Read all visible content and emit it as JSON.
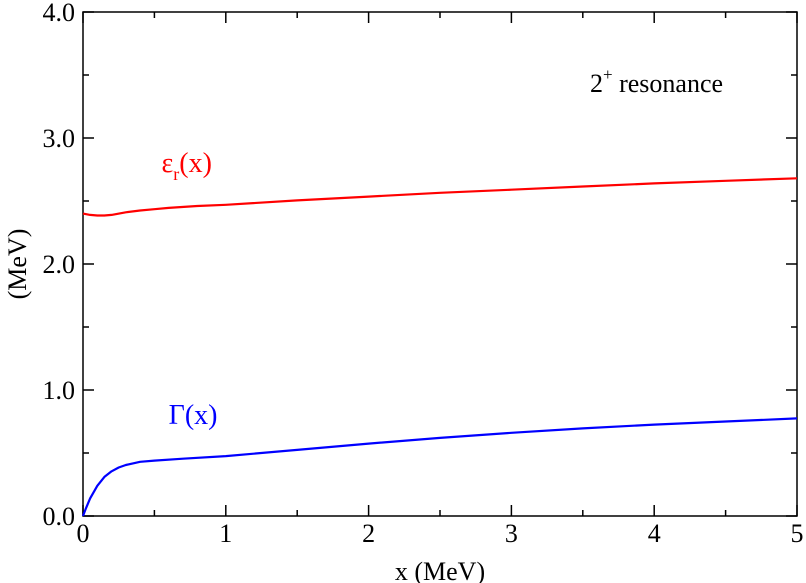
{
  "chart_data": {
    "type": "line",
    "xlabel": "x (MeV)",
    "ylabel": "(MeV)",
    "xlim": [
      0,
      5
    ],
    "ylim": [
      0,
      4
    ],
    "x_ticks": [
      "0",
      "1",
      "2",
      "3",
      "4",
      "5"
    ],
    "y_ticks": [
      "0.0",
      "1.0",
      "2.0",
      "3.0",
      "4.0"
    ],
    "grid": false,
    "annotation": {
      "base": "2",
      "sup": "+",
      "text": " resonance"
    },
    "series": [
      {
        "label_base": "ε",
        "label_sub": "r",
        "label_tail": "(x)",
        "label_x": 0.55,
        "label_y": 2.73,
        "color": "#ff0000",
        "x": [
          0,
          0.05,
          0.1,
          0.15,
          0.2,
          0.3,
          0.4,
          0.5,
          0.6,
          0.8,
          1.0,
          1.5,
          2.0,
          2.5,
          3.0,
          3.5,
          4.0,
          4.5,
          5.0
        ],
        "y": [
          2.4,
          2.39,
          2.385,
          2.385,
          2.39,
          2.41,
          2.425,
          2.435,
          2.445,
          2.46,
          2.47,
          2.505,
          2.535,
          2.565,
          2.59,
          2.615,
          2.64,
          2.66,
          2.68
        ]
      },
      {
        "label_base": "Γ",
        "label_tail": "(x)",
        "label_x": 0.6,
        "label_y": 0.73,
        "color": "#0000ff",
        "x": [
          0,
          0.02,
          0.05,
          0.1,
          0.15,
          0.2,
          0.25,
          0.3,
          0.4,
          0.5,
          0.7,
          1.0,
          1.5,
          2.0,
          2.5,
          3.0,
          3.5,
          4.0,
          4.5,
          5.0
        ],
        "y": [
          0.0,
          0.06,
          0.14,
          0.24,
          0.31,
          0.355,
          0.385,
          0.405,
          0.43,
          0.44,
          0.455,
          0.475,
          0.525,
          0.575,
          0.62,
          0.66,
          0.695,
          0.725,
          0.75,
          0.775
        ]
      }
    ]
  }
}
